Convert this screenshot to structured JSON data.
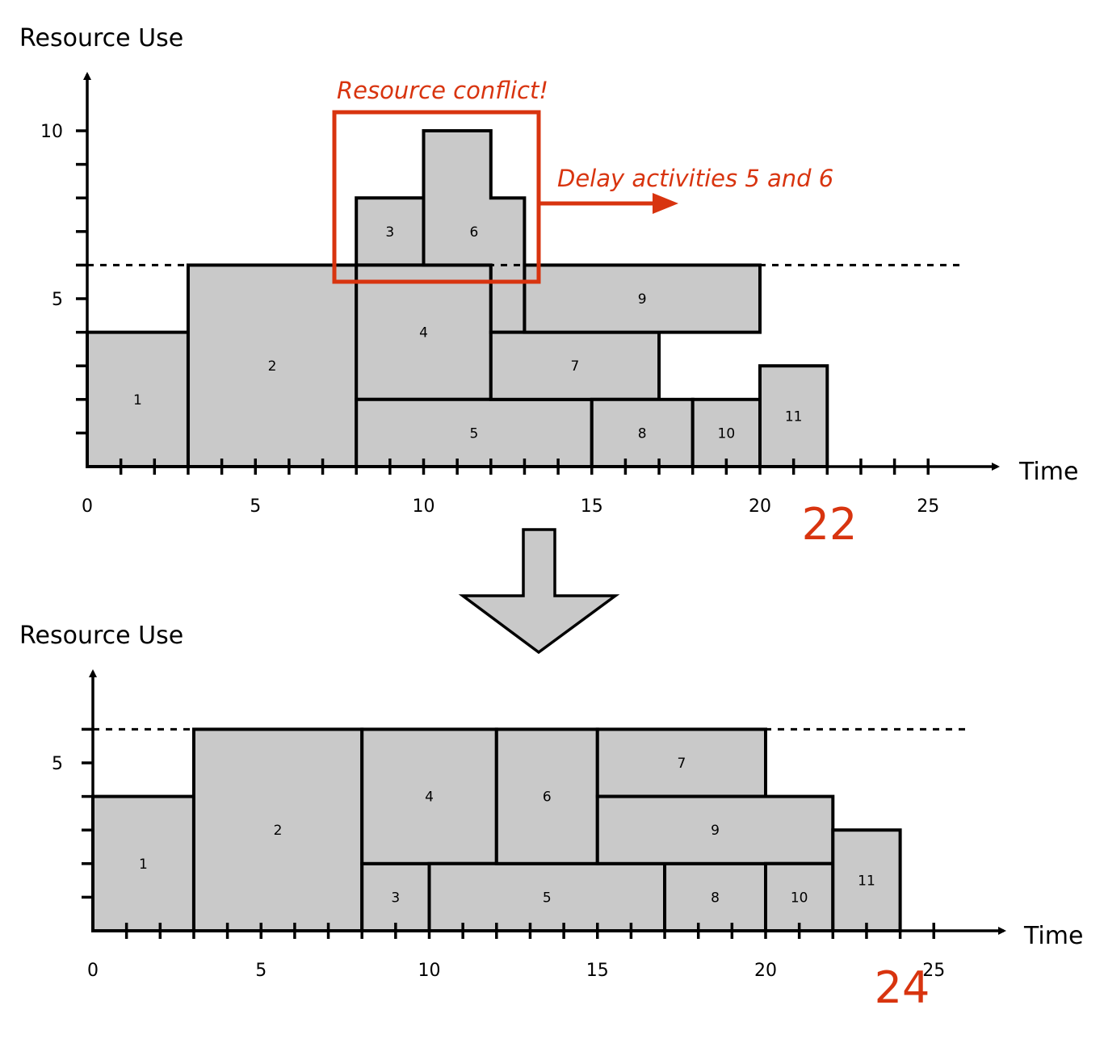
{
  "chart_data": [
    {
      "type": "bar",
      "ylabel": "Resource Use",
      "xlabel": "Time",
      "xlim": [
        0,
        26
      ],
      "ylim": [
        0,
        10
      ],
      "x_tick_labels": [
        "0",
        "5",
        "10",
        "15",
        "20",
        "25"
      ],
      "y_tick_labels": [
        "5",
        "10"
      ],
      "resource_limit": 6,
      "project_duration": "22",
      "activities": [
        {
          "id": "1",
          "start": 0,
          "end": 3,
          "bottom": 0,
          "top": 4
        },
        {
          "id": "2",
          "start": 3,
          "end": 8,
          "bottom": 0,
          "top": 6
        },
        {
          "id": "3",
          "start": 8,
          "end": 10,
          "bottom": 6,
          "top": 8
        },
        {
          "id": "4",
          "start": 8,
          "end": 12,
          "bottom": 2,
          "top": 6
        },
        {
          "id": "5",
          "start": 8,
          "end": 15,
          "bottom": 0,
          "top": 2
        },
        {
          "id": "6",
          "start": 10,
          "end": 13,
          "bottom": 4,
          "top": 10,
          "shape": [
            [
              10,
              10
            ],
            [
              12,
              10
            ],
            [
              12,
              8
            ],
            [
              13,
              8
            ],
            [
              13,
              4
            ],
            [
              12,
              4
            ],
            [
              12,
              6
            ],
            [
              10,
              6
            ]
          ]
        },
        {
          "id": "7",
          "start": 12,
          "end": 17,
          "bottom": 2,
          "top": 4
        },
        {
          "id": "8",
          "start": 15,
          "end": 18,
          "bottom": 0,
          "top": 2
        },
        {
          "id": "9",
          "start": 13,
          "end": 20,
          "bottom": 4,
          "top": 6
        },
        {
          "id": "10",
          "start": 18,
          "end": 20,
          "bottom": 0,
          "top": 2
        },
        {
          "id": "11",
          "start": 20,
          "end": 22,
          "bottom": 0,
          "top": 3
        }
      ],
      "annotations": {
        "conflict": "Resource conflict!",
        "action": "Delay activities 5 and 6"
      }
    },
    {
      "type": "bar",
      "ylabel": "Resource Use",
      "xlabel": "Time",
      "xlim": [
        0,
        26
      ],
      "ylim": [
        0,
        6
      ],
      "x_tick_labels": [
        "0",
        "5",
        "10",
        "15",
        "20",
        "25"
      ],
      "y_tick_labels": [
        "5"
      ],
      "resource_limit": 6,
      "project_duration": "24",
      "activities": [
        {
          "id": "1",
          "start": 0,
          "end": 3,
          "bottom": 0,
          "top": 4
        },
        {
          "id": "2",
          "start": 3,
          "end": 8,
          "bottom": 0,
          "top": 6
        },
        {
          "id": "3",
          "start": 8,
          "end": 10,
          "bottom": 0,
          "top": 2
        },
        {
          "id": "4",
          "start": 8,
          "end": 12,
          "bottom": 2,
          "top": 6
        },
        {
          "id": "5",
          "start": 10,
          "end": 17,
          "bottom": 0,
          "top": 2
        },
        {
          "id": "6",
          "start": 12,
          "end": 15,
          "bottom": 2,
          "top": 6
        },
        {
          "id": "7",
          "start": 15,
          "end": 20,
          "bottom": 4,
          "top": 6
        },
        {
          "id": "8",
          "start": 17,
          "end": 20,
          "bottom": 0,
          "top": 2
        },
        {
          "id": "9",
          "start": 15,
          "end": 22,
          "bottom": 2,
          "top": 4
        },
        {
          "id": "10",
          "start": 20,
          "end": 22,
          "bottom": 0,
          "top": 2
        },
        {
          "id": "11",
          "start": 22,
          "end": 24,
          "bottom": 0,
          "top": 3
        }
      ]
    }
  ],
  "colors": {
    "activity_fill": "#c9c9c9",
    "stroke": "#000000",
    "accent": "#d8340f"
  }
}
